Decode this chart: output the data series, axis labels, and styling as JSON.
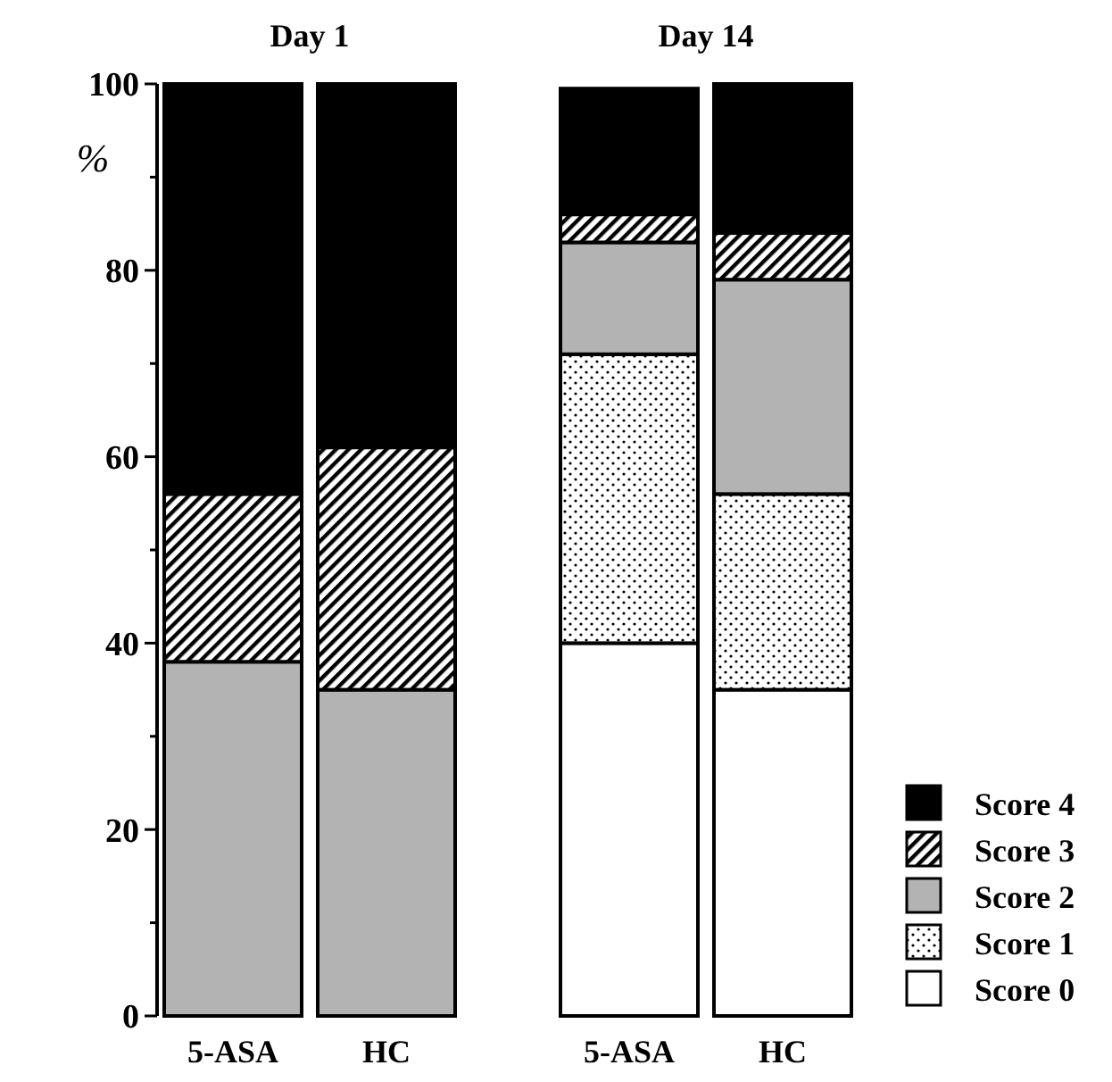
{
  "chart_data": {
    "type": "bar",
    "stacked": true,
    "ylabel": "%",
    "categories": [
      "5-ASA",
      "HC",
      "5-ASA",
      "HC"
    ],
    "annotations": [
      "Day 1",
      "Day 14"
    ],
    "series": [
      {
        "name": "Score 0",
        "color": "#ffffff",
        "values": [
          0,
          0,
          40,
          35
        ]
      },
      {
        "name": "Score 1",
        "color": "#000000",
        "values": [
          0,
          0,
          31,
          21
        ]
      },
      {
        "name": "Score 2",
        "color": "#b3b3b3",
        "values": [
          38,
          35,
          12,
          23
        ]
      },
      {
        "name": "Score 3",
        "color": "#000000",
        "values": [
          18,
          26,
          3,
          5
        ]
      },
      {
        "name": "Score 4",
        "color": "#000000",
        "values": [
          44,
          39,
          13.5,
          16
        ]
      }
    ],
    "ylim": [
      0,
      100
    ],
    "yticks": [
      0,
      {
        "value": 10,
        "label": null
      },
      20,
      {
        "value": 30,
        "label": null
      },
      40,
      {
        "value": 50,
        "label": null
      },
      60,
      {
        "value": 70,
        "label": null
      },
      80,
      {
        "value": 90,
        "label": null
      },
      100
    ],
    "legend": "bottom right"
  }
}
